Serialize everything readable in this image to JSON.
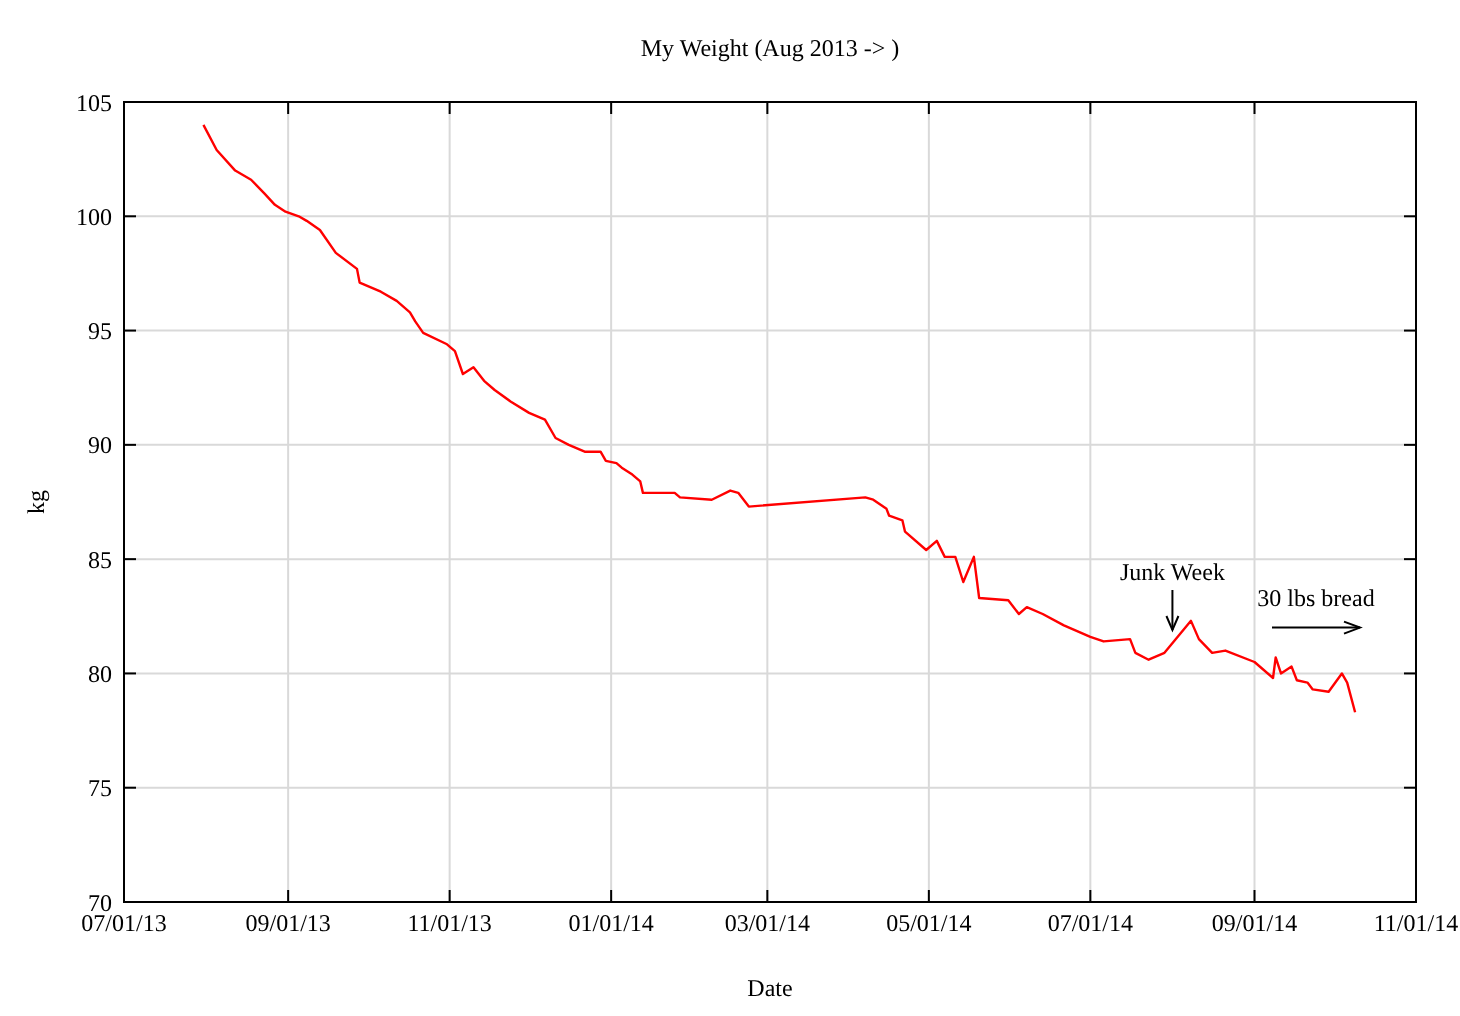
{
  "chart_data": {
    "type": "line",
    "title": "My Weight (Aug 2013 -> )",
    "xlabel": "Date",
    "ylabel": "kg",
    "x": [
      "2013-07-31",
      "2013-08-05",
      "2013-08-12",
      "2013-08-18",
      "2013-08-23",
      "2013-08-27",
      "2013-08-31",
      "2013-09-05",
      "2013-09-08",
      "2013-09-13",
      "2013-09-19",
      "2013-09-27",
      "2013-09-28",
      "2013-10-06",
      "2013-10-12",
      "2013-10-17",
      "2013-10-19",
      "2013-10-22",
      "2013-10-31",
      "2013-11-03",
      "2013-11-06",
      "2013-11-10",
      "2013-11-14",
      "2013-11-18",
      "2013-11-24",
      "2013-12-01",
      "2013-12-07",
      "2013-12-11",
      "2013-12-16",
      "2013-12-22",
      "2013-12-28",
      "2013-12-30",
      "2014-01-03",
      "2014-01-05",
      "2014-01-09",
      "2014-01-12",
      "2014-01-13",
      "2014-01-25",
      "2014-01-27",
      "2014-02-08",
      "2014-02-15",
      "2014-02-18",
      "2014-02-22",
      "2014-04-07",
      "2014-04-10",
      "2014-04-15",
      "2014-04-16",
      "2014-04-21",
      "2014-04-22",
      "2014-04-30",
      "2014-05-04",
      "2014-05-07",
      "2014-05-11",
      "2014-05-14",
      "2014-05-18",
      "2014-05-20",
      "2014-05-31",
      "2014-06-04",
      "2014-06-07",
      "2014-06-13",
      "2014-06-21",
      "2014-07-01",
      "2014-07-06",
      "2014-07-16",
      "2014-07-18",
      "2014-07-23",
      "2014-07-29",
      "2014-08-08",
      "2014-08-11",
      "2014-08-16",
      "2014-08-21",
      "2014-09-01",
      "2014-09-08",
      "2014-09-09",
      "2014-09-11",
      "2014-09-15",
      "2014-09-17",
      "2014-09-21",
      "2014-09-23",
      "2014-09-29",
      "2014-10-04",
      "2014-10-06",
      "2014-10-09"
    ],
    "series": [
      {
        "color": "#ff0000",
        "values": [
          104.0,
          102.9,
          102.0,
          101.6,
          101.0,
          100.5,
          100.2,
          100.0,
          99.8,
          99.4,
          98.4,
          97.7,
          97.1,
          96.7,
          96.3,
          95.8,
          95.4,
          94.9,
          94.4,
          94.1,
          93.1,
          93.4,
          92.8,
          92.4,
          91.9,
          91.4,
          91.1,
          90.3,
          90.0,
          89.7,
          89.7,
          89.3,
          89.2,
          89.0,
          88.7,
          88.4,
          87.9,
          87.9,
          87.7,
          87.6,
          88.0,
          87.9,
          87.3,
          87.7,
          87.6,
          87.2,
          86.9,
          86.7,
          86.2,
          85.4,
          85.8,
          85.1,
          85.1,
          84.0,
          85.1,
          83.3,
          83.2,
          82.6,
          82.9,
          82.6,
          82.1,
          81.6,
          81.4,
          81.5,
          80.9,
          80.6,
          80.9,
          82.3,
          81.5,
          80.9,
          81.0,
          80.5,
          79.8,
          80.7,
          80.0,
          80.3,
          79.7,
          79.6,
          79.3,
          79.2,
          80.0,
          79.6,
          78.3
        ]
      }
    ],
    "xlim": [
      "2013-07-01",
      "2014-11-01"
    ],
    "xticks": [
      {
        "value": "2013-07-01",
        "label": "07/01/13"
      },
      {
        "value": "2013-09-01",
        "label": "09/01/13"
      },
      {
        "value": "2013-11-01",
        "label": "11/01/13"
      },
      {
        "value": "2014-01-01",
        "label": "01/01/14"
      },
      {
        "value": "2014-03-01",
        "label": "03/01/14"
      },
      {
        "value": "2014-05-01",
        "label": "05/01/14"
      },
      {
        "value": "2014-07-01",
        "label": "07/01/14"
      },
      {
        "value": "2014-09-01",
        "label": "09/01/14"
      },
      {
        "value": "2014-11-01",
        "label": "11/01/14"
      }
    ],
    "ylim": [
      70,
      105
    ],
    "yticks": [
      70,
      75,
      80,
      85,
      90,
      95,
      100,
      105
    ],
    "grid": true,
    "marker": "none",
    "line_style": "solid",
    "annotations": [
      {
        "text": "Junk Week",
        "x": "2014-08-01",
        "y": 81.9
      },
      "30 lbs bread"
    ]
  }
}
